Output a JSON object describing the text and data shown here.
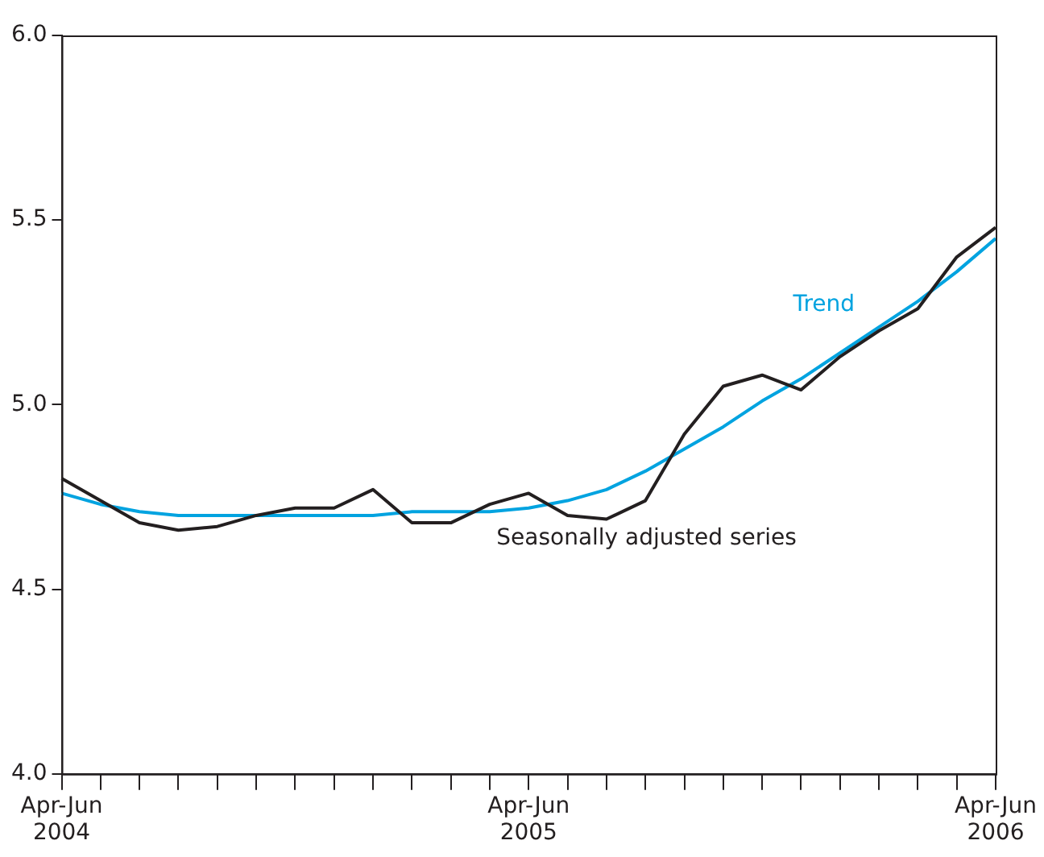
{
  "chart_data": {
    "type": "line",
    "categories": [
      "Apr-Jun 2004",
      null,
      null,
      null,
      null,
      null,
      null,
      null,
      null,
      null,
      null,
      null,
      "Apr-Jun 2005",
      null,
      null,
      null,
      null,
      null,
      null,
      null,
      null,
      null,
      null,
      null,
      "Apr-Jun 2006"
    ],
    "series": [
      {
        "name": "Seasonally adjusted series",
        "color": "#231f20",
        "values": [
          4.8,
          4.74,
          4.68,
          4.66,
          4.67,
          4.7,
          4.72,
          4.72,
          4.77,
          4.68,
          4.68,
          4.73,
          4.76,
          4.7,
          4.69,
          4.74,
          4.92,
          5.05,
          5.08,
          5.04,
          5.13,
          5.2,
          5.26,
          5.4,
          5.48
        ]
      },
      {
        "name": "Trend",
        "color": "#00a3e0",
        "values": [
          4.76,
          4.73,
          4.71,
          4.7,
          4.7,
          4.7,
          4.7,
          4.7,
          4.7,
          4.71,
          4.71,
          4.71,
          4.72,
          4.74,
          4.77,
          4.82,
          4.88,
          4.94,
          5.01,
          5.07,
          5.14,
          5.21,
          5.28,
          5.36,
          5.45
        ]
      }
    ],
    "ylim": [
      4.0,
      6.0
    ],
    "yticks": [
      {
        "value": 4.0,
        "label": "4.0"
      },
      {
        "value": 4.5,
        "label": "4.5"
      },
      {
        "value": 5.0,
        "label": "5.0"
      },
      {
        "value": 5.5,
        "label": "5.5"
      },
      {
        "value": 6.0,
        "label": "6.0"
      }
    ],
    "grid": false,
    "legend": false,
    "marker": "none",
    "line_style": "solid"
  }
}
